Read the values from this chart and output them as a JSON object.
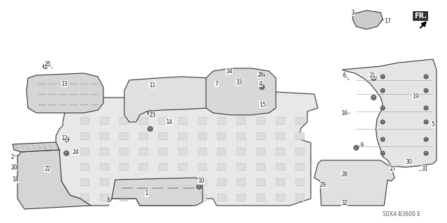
{
  "background_color": "#ffffff",
  "diagram_code": "S0X4-B3600 E",
  "line_color": "#333333",
  "label_color": "#222222",
  "line_width": 0.8
}
